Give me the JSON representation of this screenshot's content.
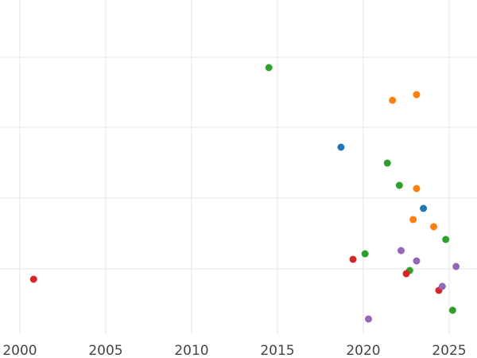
{
  "chart_data": {
    "type": "scatter",
    "title": "",
    "xlabel": "",
    "ylabel": "",
    "xlim": [
      1999.5,
      2026.5
    ],
    "ylim": [
      0,
      420
    ],
    "x_ticks": [
      2000,
      2005,
      2010,
      2015,
      2020,
      2025
    ],
    "x_tick_labels": [
      "2000",
      "2005",
      "2010",
      "2015",
      "2020",
      "2025"
    ],
    "y_grid": [
      72,
      160,
      249,
      338
    ],
    "grid": true,
    "series": [
      {
        "color": "#1f77b4",
        "points": [
          {
            "x": 2018.7,
            "y": 185
          },
          {
            "x": 2023.5,
            "y": 262
          }
        ]
      },
      {
        "color": "#ff7f0e",
        "points": [
          {
            "x": 2021.7,
            "y": 126
          },
          {
            "x": 2023.1,
            "y": 119
          },
          {
            "x": 2023.1,
            "y": 237
          },
          {
            "x": 2022.9,
            "y": 276
          },
          {
            "x": 2024.1,
            "y": 285
          }
        ]
      },
      {
        "color": "#2ca02c",
        "points": [
          {
            "x": 2014.5,
            "y": 85
          },
          {
            "x": 2021.4,
            "y": 205
          },
          {
            "x": 2022.1,
            "y": 233
          },
          {
            "x": 2024.8,
            "y": 301
          },
          {
            "x": 2020.1,
            "y": 319
          },
          {
            "x": 2022.7,
            "y": 340
          },
          {
            "x": 2025.2,
            "y": 390
          }
        ]
      },
      {
        "color": "#d62728",
        "points": [
          {
            "x": 2000.8,
            "y": 351
          },
          {
            "x": 2019.4,
            "y": 326
          },
          {
            "x": 2022.5,
            "y": 344
          },
          {
            "x": 2024.4,
            "y": 365
          }
        ]
      },
      {
        "color": "#9467bd",
        "points": [
          {
            "x": 2022.2,
            "y": 315
          },
          {
            "x": 2023.1,
            "y": 328
          },
          {
            "x": 2025.4,
            "y": 335
          },
          {
            "x": 2024.6,
            "y": 360
          },
          {
            "x": 2020.3,
            "y": 401
          }
        ]
      }
    ]
  }
}
